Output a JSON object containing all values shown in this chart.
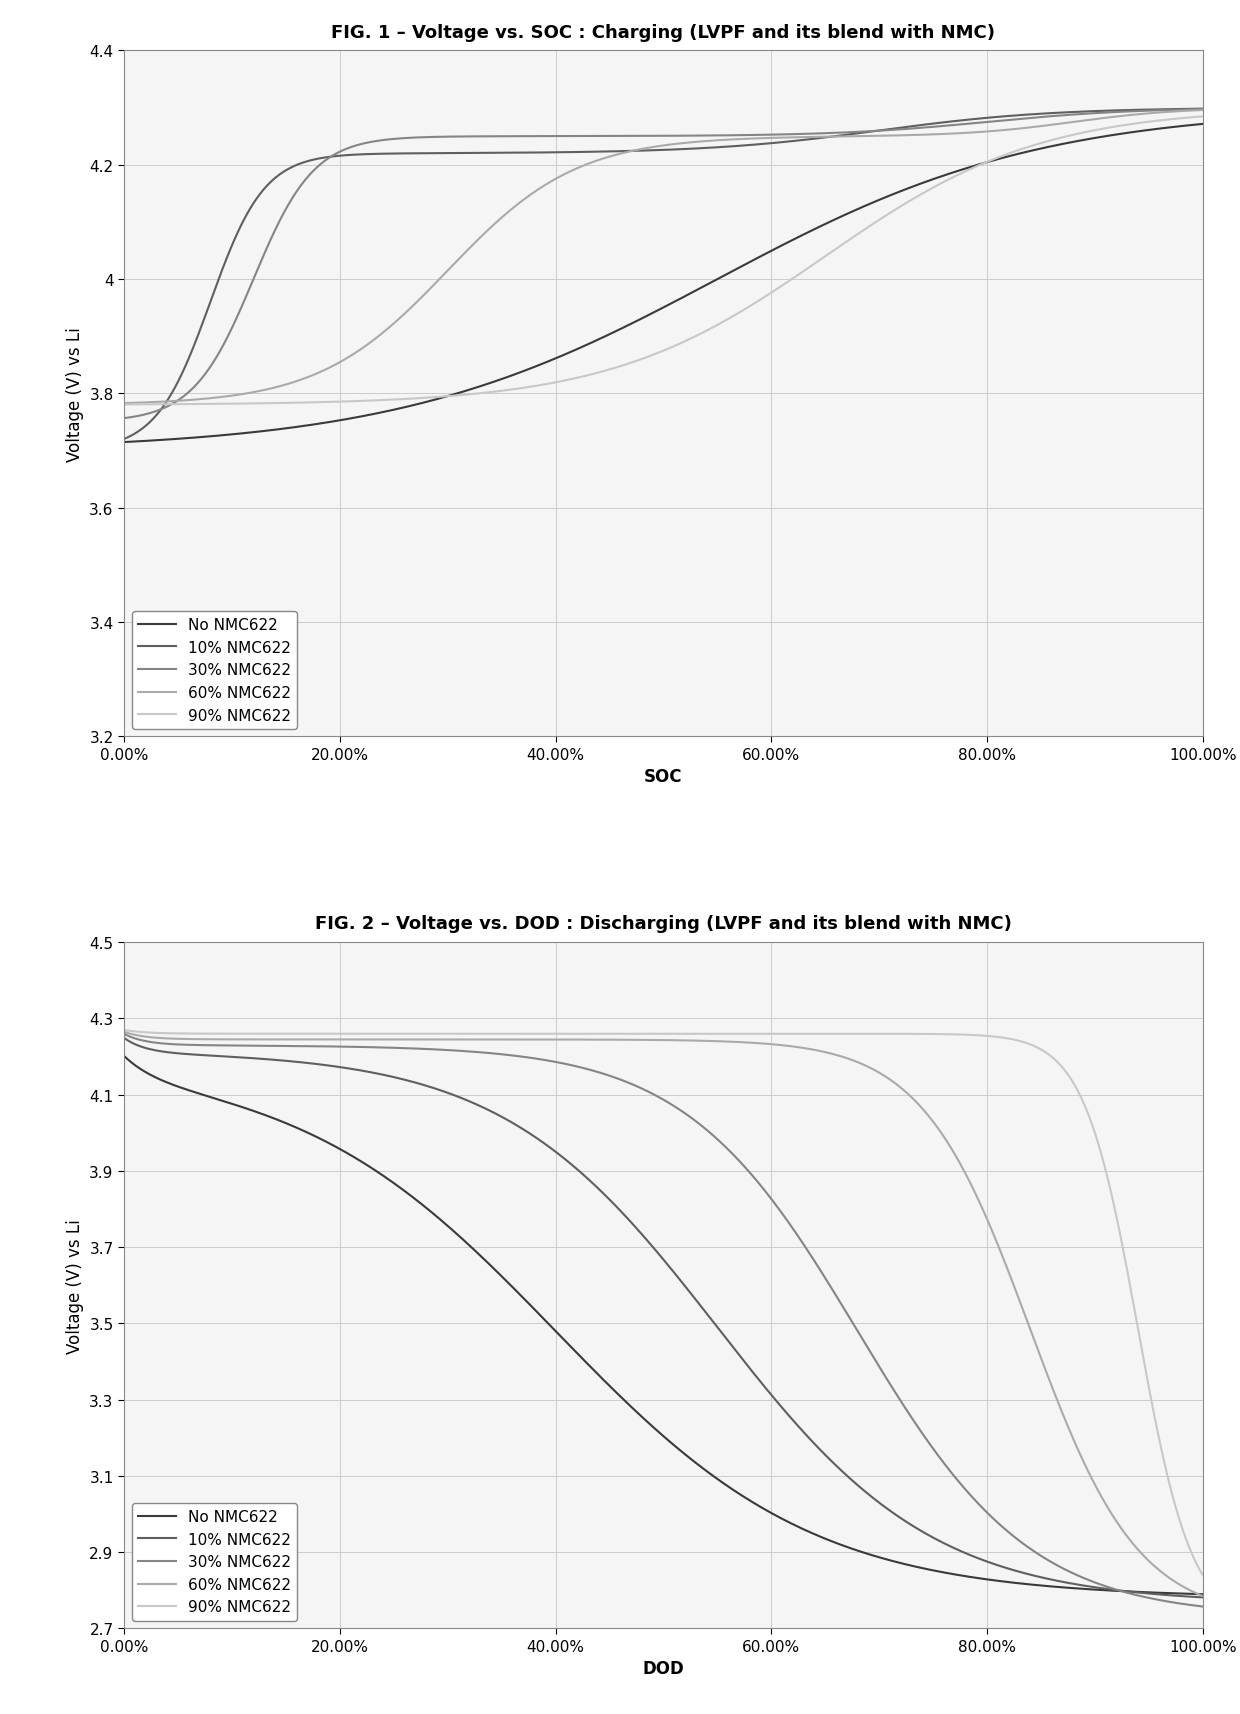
{
  "fig1_title": "FIG. 1 – Voltage vs. SOC : Charging (LVPF and its blend with NMC)",
  "fig2_title": "FIG. 2 – Voltage vs. DOD : Discharging (LVPF and its blend with NMC)",
  "fig1_xlabel": "SOC",
  "fig2_xlabel": "DOD",
  "ylabel": "Voltage (V) vs Li",
  "fig1_ylim": [
    3.2,
    4.4
  ],
  "fig2_ylim": [
    2.7,
    4.5
  ],
  "fig1_yticks": [
    3.2,
    3.4,
    3.6,
    3.8,
    4.0,
    4.2,
    4.4
  ],
  "fig2_yticks": [
    2.7,
    2.9,
    3.1,
    3.3,
    3.5,
    3.7,
    3.9,
    4.1,
    4.3,
    4.5
  ],
  "xticks": [
    0.0,
    0.2,
    0.4,
    0.6,
    0.8,
    1.0
  ],
  "xtick_labels": [
    "0.00%",
    "20.00%",
    "40.00%",
    "60.00%",
    "80.00%",
    "100.00%"
  ],
  "legend_labels": [
    "No NMC622",
    "10% NMC622",
    "30% NMC622",
    "60% NMC622",
    "90% NMC622"
  ],
  "colors_charge": [
    "#3a3a3a",
    "#5f5f5f",
    "#858585",
    "#aaaaaa",
    "#c8c8c8"
  ],
  "colors_discharge": [
    "#3a3a3a",
    "#5f5f5f",
    "#858585",
    "#aaaaaa",
    "#c8c8c8"
  ],
  "background_color": "#ffffff",
  "panel_bg": "#f5f5f5",
  "grid_color": "#cccccc",
  "title_fontsize": 13,
  "axis_label_fontsize": 12,
  "tick_fontsize": 11,
  "legend_fontsize": 11
}
